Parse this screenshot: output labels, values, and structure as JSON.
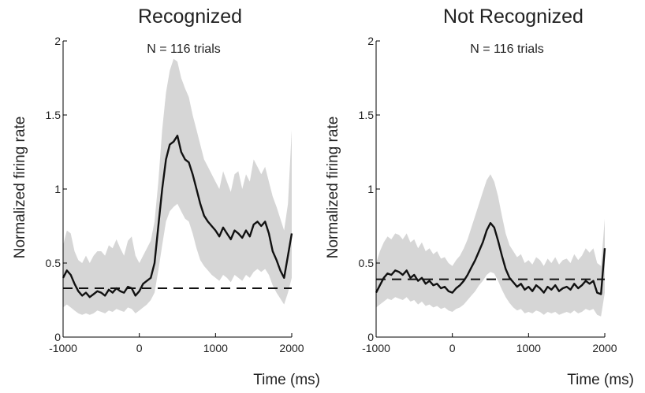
{
  "chart_data": [
    {
      "type": "line",
      "title": "Recognized",
      "subtitle": "N = 116 trials",
      "xlabel": "Time (ms)",
      "ylabel": "Normalized firing rate",
      "xlim": [
        -1000,
        2000
      ],
      "ylim": [
        0,
        2
      ],
      "xticks": [
        "-1000",
        "0",
        "1000",
        "2000"
      ],
      "yticks": [
        "0",
        "0.5",
        "1",
        "1.5",
        "2"
      ],
      "grid": false,
      "colors": {
        "mean": "#111111",
        "band": "#d6d6d6",
        "baseline": "#111111"
      },
      "baseline": 0.33,
      "series": [
        {
          "x": [
            -1000,
            -950,
            -900,
            -850,
            -800,
            -750,
            -700,
            -650,
            -600,
            -550,
            -500,
            -450,
            -400,
            -350,
            -300,
            -250,
            -200,
            -150,
            -100,
            -50,
            0,
            50,
            100,
            150,
            200,
            250,
            300,
            350,
            400,
            450,
            500,
            550,
            600,
            650,
            700,
            750,
            800,
            850,
            900,
            950,
            1000,
            1050,
            1100,
            1150,
            1200,
            1250,
            1300,
            1350,
            1400,
            1450,
            1500,
            1550,
            1600,
            1650,
            1700,
            1750,
            1800,
            1850,
            1900,
            1950,
            2000
          ],
          "values": [
            0.4,
            0.45,
            0.42,
            0.36,
            0.31,
            0.28,
            0.3,
            0.27,
            0.29,
            0.31,
            0.3,
            0.28,
            0.32,
            0.3,
            0.33,
            0.31,
            0.3,
            0.34,
            0.33,
            0.28,
            0.31,
            0.36,
            0.38,
            0.4,
            0.5,
            0.75,
            1.0,
            1.2,
            1.3,
            1.32,
            1.36,
            1.25,
            1.2,
            1.18,
            1.1,
            1.0,
            0.9,
            0.82,
            0.78,
            0.75,
            0.72,
            0.68,
            0.74,
            0.7,
            0.66,
            0.72,
            0.7,
            0.67,
            0.72,
            0.68,
            0.76,
            0.78,
            0.75,
            0.78,
            0.7,
            0.58,
            0.52,
            0.45,
            0.4,
            0.55,
            0.7
          ],
          "lower": [
            0.2,
            0.22,
            0.2,
            0.18,
            0.16,
            0.15,
            0.16,
            0.15,
            0.16,
            0.18,
            0.17,
            0.16,
            0.18,
            0.17,
            0.19,
            0.18,
            0.17,
            0.2,
            0.19,
            0.16,
            0.18,
            0.2,
            0.22,
            0.25,
            0.3,
            0.45,
            0.62,
            0.78,
            0.85,
            0.88,
            0.9,
            0.85,
            0.8,
            0.78,
            0.7,
            0.6,
            0.52,
            0.48,
            0.45,
            0.42,
            0.4,
            0.38,
            0.42,
            0.4,
            0.37,
            0.42,
            0.4,
            0.38,
            0.42,
            0.4,
            0.44,
            0.46,
            0.44,
            0.46,
            0.42,
            0.35,
            0.3,
            0.26,
            0.22,
            0.3,
            0.4
          ],
          "upper": [
            0.62,
            0.72,
            0.7,
            0.58,
            0.52,
            0.5,
            0.55,
            0.5,
            0.55,
            0.58,
            0.58,
            0.55,
            0.62,
            0.6,
            0.66,
            0.6,
            0.55,
            0.65,
            0.68,
            0.55,
            0.5,
            0.55,
            0.6,
            0.65,
            0.78,
            1.05,
            1.4,
            1.65,
            1.8,
            1.88,
            1.86,
            1.75,
            1.68,
            1.62,
            1.5,
            1.4,
            1.3,
            1.2,
            1.15,
            1.1,
            1.05,
            1.0,
            1.12,
            1.05,
            0.98,
            1.1,
            1.12,
            1.0,
            1.1,
            1.05,
            1.2,
            1.15,
            1.1,
            1.15,
            1.05,
            0.95,
            0.88,
            0.8,
            0.72,
            0.9,
            1.4
          ]
        }
      ]
    },
    {
      "type": "line",
      "title": "Not Recognized",
      "subtitle": "N = 116 trials",
      "xlabel": "Time (ms)",
      "ylabel": "Normalized firing rate",
      "xlim": [
        -1000,
        2000
      ],
      "ylim": [
        0,
        2
      ],
      "xticks": [
        "-1000",
        "0",
        "1000",
        "2000"
      ],
      "yticks": [
        "0",
        "0.5",
        "1",
        "1.5",
        "2"
      ],
      "grid": false,
      "colors": {
        "mean": "#111111",
        "band": "#d6d6d6",
        "baseline": "#111111"
      },
      "baseline": 0.39,
      "series": [
        {
          "x": [
            -1000,
            -950,
            -900,
            -850,
            -800,
            -750,
            -700,
            -650,
            -600,
            -550,
            -500,
            -450,
            -400,
            -350,
            -300,
            -250,
            -200,
            -150,
            -100,
            -50,
            0,
            50,
            100,
            150,
            200,
            250,
            300,
            350,
            400,
            450,
            500,
            550,
            600,
            650,
            700,
            750,
            800,
            850,
            900,
            950,
            1000,
            1050,
            1100,
            1150,
            1200,
            1250,
            1300,
            1350,
            1400,
            1450,
            1500,
            1550,
            1600,
            1650,
            1700,
            1750,
            1800,
            1850,
            1900,
            1950,
            2000
          ],
          "values": [
            0.3,
            0.35,
            0.4,
            0.43,
            0.42,
            0.45,
            0.44,
            0.42,
            0.45,
            0.4,
            0.42,
            0.38,
            0.4,
            0.36,
            0.38,
            0.35,
            0.36,
            0.33,
            0.34,
            0.31,
            0.3,
            0.33,
            0.35,
            0.38,
            0.42,
            0.47,
            0.52,
            0.58,
            0.64,
            0.72,
            0.77,
            0.74,
            0.65,
            0.55,
            0.46,
            0.4,
            0.37,
            0.34,
            0.36,
            0.32,
            0.34,
            0.31,
            0.35,
            0.33,
            0.3,
            0.34,
            0.32,
            0.35,
            0.31,
            0.33,
            0.34,
            0.32,
            0.36,
            0.33,
            0.35,
            0.38,
            0.36,
            0.38,
            0.3,
            0.29,
            0.6
          ],
          "lower": [
            0.2,
            0.22,
            0.24,
            0.26,
            0.25,
            0.27,
            0.26,
            0.25,
            0.27,
            0.24,
            0.25,
            0.22,
            0.24,
            0.21,
            0.22,
            0.2,
            0.21,
            0.19,
            0.2,
            0.18,
            0.17,
            0.19,
            0.2,
            0.22,
            0.25,
            0.28,
            0.31,
            0.35,
            0.38,
            0.42,
            0.44,
            0.43,
            0.38,
            0.32,
            0.27,
            0.23,
            0.2,
            0.18,
            0.19,
            0.16,
            0.17,
            0.16,
            0.18,
            0.17,
            0.15,
            0.17,
            0.16,
            0.17,
            0.15,
            0.16,
            0.17,
            0.16,
            0.18,
            0.16,
            0.17,
            0.19,
            0.18,
            0.19,
            0.15,
            0.14,
            0.3
          ],
          "upper": [
            0.5,
            0.58,
            0.64,
            0.68,
            0.66,
            0.7,
            0.69,
            0.66,
            0.7,
            0.64,
            0.66,
            0.6,
            0.64,
            0.58,
            0.6,
            0.56,
            0.58,
            0.53,
            0.54,
            0.5,
            0.48,
            0.52,
            0.55,
            0.6,
            0.66,
            0.74,
            0.82,
            0.9,
            0.98,
            1.06,
            1.1,
            1.05,
            0.95,
            0.82,
            0.7,
            0.62,
            0.58,
            0.54,
            0.56,
            0.5,
            0.52,
            0.49,
            0.54,
            0.52,
            0.48,
            0.53,
            0.5,
            0.54,
            0.49,
            0.52,
            0.53,
            0.5,
            0.56,
            0.52,
            0.55,
            0.6,
            0.57,
            0.6,
            0.5,
            0.48,
            0.8
          ]
        }
      ]
    }
  ]
}
